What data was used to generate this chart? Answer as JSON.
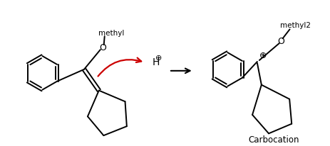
{
  "background_color": "#ffffff",
  "curved_arrow_color": "#cc0000",
  "label_carbocation": "Carbocation",
  "label_plus": "⊕",
  "label_H": "H",
  "label_O": "O",
  "label_methyl": "methyl",
  "figsize": [
    4.63,
    2.06
  ],
  "dpi": 100,
  "lw": 1.4,
  "benz_r": 24,
  "hex_angles": [
    30,
    90,
    150,
    210,
    270,
    330
  ]
}
